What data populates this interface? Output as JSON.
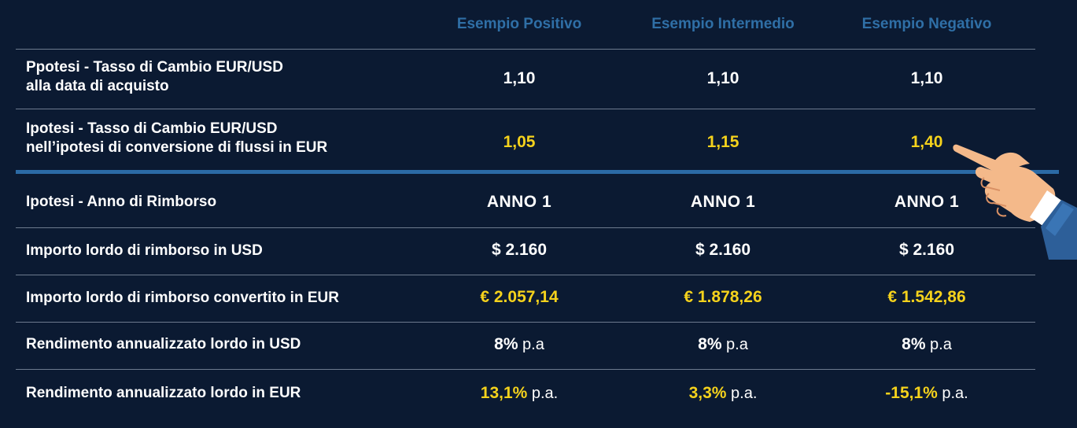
{
  "columns": [
    "Esempio Positivo",
    "Esempio Intermedio",
    "Esempio Negativo"
  ],
  "rows": [
    {
      "label_line1": "Ppotesi - Tasso di Cambio EUR/USD",
      "label_line2": "alla data di acquisto",
      "values": [
        {
          "main": "1,10",
          "unit": ""
        },
        {
          "main": "1,10",
          "unit": ""
        },
        {
          "main": "1,10",
          "unit": ""
        }
      ]
    },
    {
      "label_line1": "Ipotesi - Tasso di Cambio EUR/USD",
      "label_line2": "nell’ipotesi di conversione di flussi in EUR",
      "values": [
        {
          "main": "1,05",
          "unit": ""
        },
        {
          "main": "1,15",
          "unit": ""
        },
        {
          "main": "1,40",
          "unit": ""
        }
      ]
    },
    {
      "label_line1": "Ipotesi - Anno di Rimborso",
      "label_line2": "",
      "values": [
        {
          "main": "ANNO 1",
          "unit": ""
        },
        {
          "main": "ANNO 1",
          "unit": ""
        },
        {
          "main": "ANNO 1",
          "unit": ""
        }
      ]
    },
    {
      "label_line1": "Importo lordo di rimborso in USD",
      "label_line2": "",
      "values": [
        {
          "main": "$ 2.160",
          "unit": ""
        },
        {
          "main": "$ 2.160",
          "unit": ""
        },
        {
          "main": "$ 2.160",
          "unit": ""
        }
      ]
    },
    {
      "label_line1": "Importo lordo di rimborso convertito in EUR",
      "label_line2": "",
      "values": [
        {
          "main": "€ 2.057,14",
          "unit": ""
        },
        {
          "main": "€ 1.878,26",
          "unit": ""
        },
        {
          "main": "€ 1.542,86",
          "unit": ""
        }
      ]
    },
    {
      "label_line1": "Rendimento annualizzato lordo in USD",
      "label_line2": "",
      "values": [
        {
          "main": "8%",
          "unit": " p.a"
        },
        {
          "main": "8%",
          "unit": " p.a"
        },
        {
          "main": "8%",
          "unit": " p.a"
        }
      ]
    },
    {
      "label_line1": "Rendimento annualizzato lordo in EUR",
      "label_line2": "",
      "values": [
        {
          "main": "13,1%",
          "unit": " p.a."
        },
        {
          "main": "3,3%",
          "unit": " p.a."
        },
        {
          "main": "-15,1%",
          "unit": " p.a."
        }
      ]
    }
  ],
  "colors": {
    "background": "#0b1a32",
    "header": "#2f6fa6",
    "highlight": "#f5d21c",
    "divider": "#2b6aa5"
  },
  "decoration": {
    "icon": "pointing-hand-icon"
  }
}
